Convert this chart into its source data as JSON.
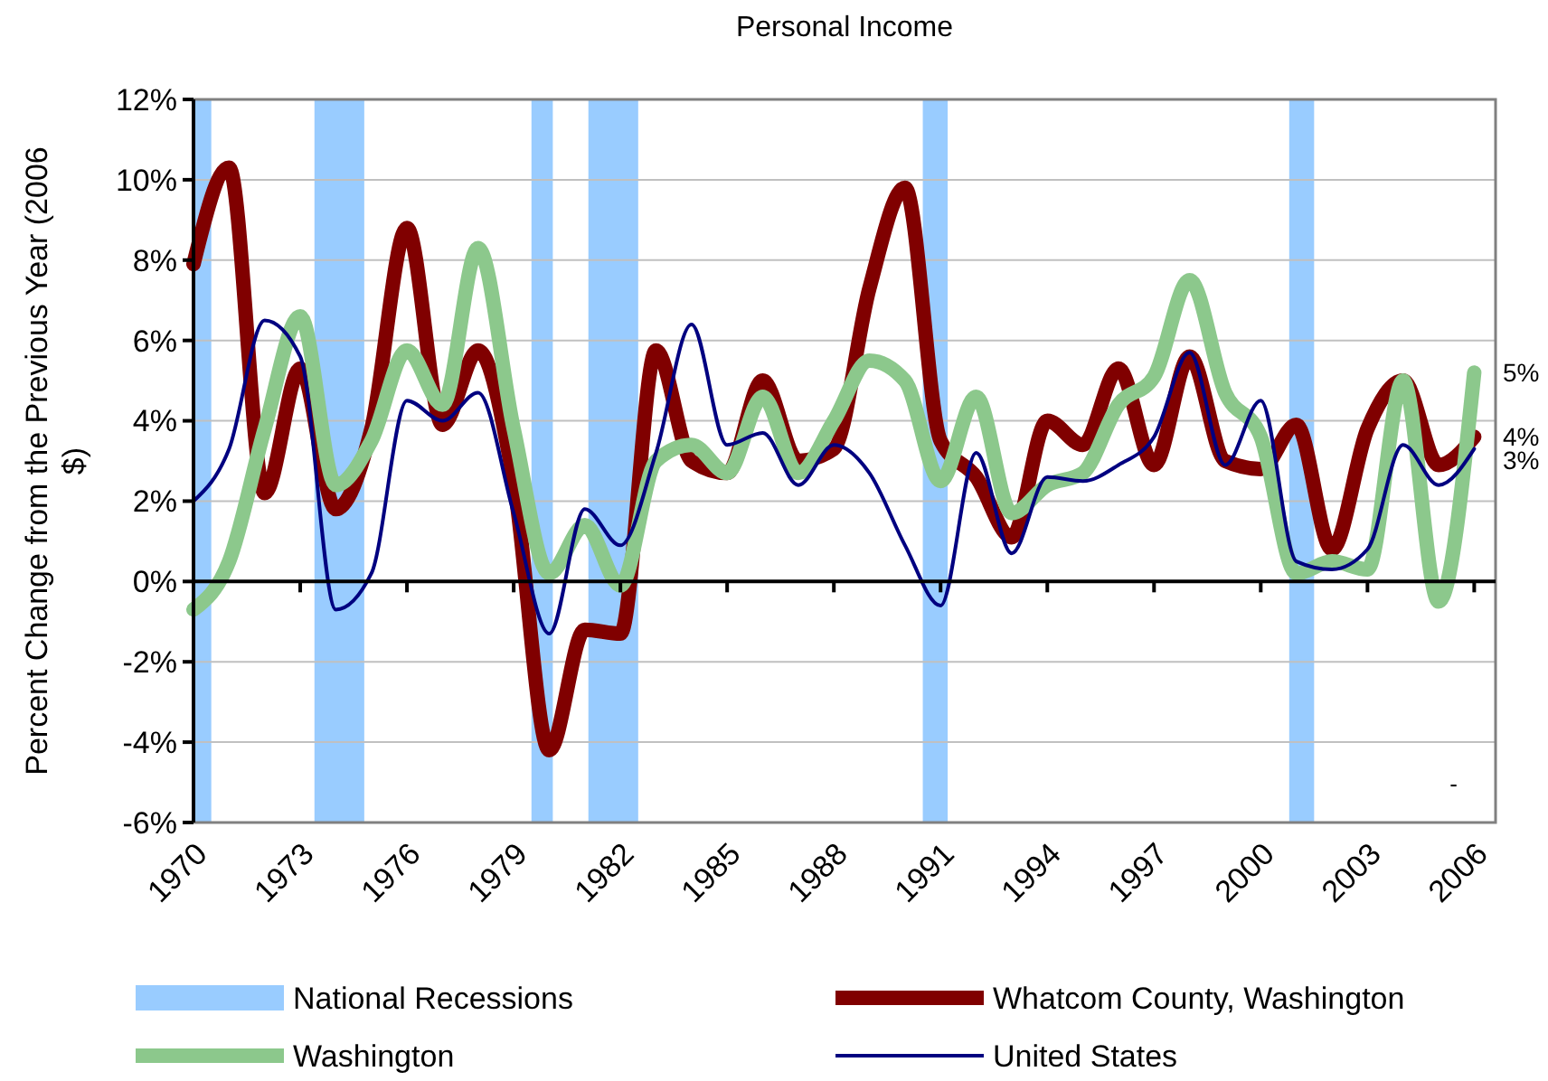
{
  "chart_data": {
    "type": "line",
    "title": "Personal Income",
    "ylabel": "Percent Change from the Previous Year (2006 $)",
    "x": [
      1970,
      1971,
      1972,
      1973,
      1974,
      1975,
      1976,
      1977,
      1978,
      1979,
      1980,
      1981,
      1982,
      1983,
      1984,
      1985,
      1986,
      1987,
      1988,
      1989,
      1990,
      1991,
      1992,
      1993,
      1994,
      1995,
      1996,
      1997,
      1998,
      1999,
      2000,
      2001,
      2002,
      2003,
      2004,
      2005,
      2006
    ],
    "series": [
      {
        "name": "Whatcom County, Washington",
        "color": "#800000",
        "values": [
          7.9,
          10.3,
          2.2,
          5.3,
          1.8,
          3.8,
          8.8,
          3.9,
          5.75,
          2.5,
          -4.2,
          -1.2,
          -1.3,
          5.75,
          3.0,
          2.7,
          5.0,
          3.0,
          3.3,
          7.3,
          9.8,
          3.5,
          2.6,
          1.1,
          4.0,
          3.4,
          5.3,
          2.9,
          5.6,
          3.0,
          2.8,
          3.9,
          0.8,
          3.8,
          5.0,
          2.9,
          3.6
        ],
        "value_labels": [
          null,
          null,
          null,
          null,
          null,
          null,
          null,
          null,
          null,
          null,
          null,
          null,
          null,
          null,
          null,
          null,
          null,
          null,
          null,
          null,
          null,
          null,
          null,
          null,
          null,
          null,
          null,
          null,
          null,
          null,
          null,
          null,
          null,
          null,
          null,
          null,
          "4%"
        ]
      },
      {
        "name": "Washington",
        "color": "#8cc88c",
        "values": [
          -0.7,
          0.5,
          3.8,
          6.6,
          2.4,
          3.5,
          5.75,
          4.4,
          8.3,
          3.8,
          0.2,
          1.4,
          -0.1,
          3.0,
          3.4,
          2.7,
          4.6,
          2.7,
          4.0,
          5.5,
          5.0,
          2.5,
          4.6,
          1.7,
          2.4,
          2.7,
          4.4,
          5.1,
          7.5,
          4.7,
          3.6,
          0.2,
          0.5,
          0.3,
          5.0,
          -0.5,
          5.2
        ],
        "value_labels": [
          null,
          null,
          null,
          null,
          null,
          null,
          null,
          null,
          null,
          null,
          null,
          null,
          null,
          null,
          null,
          null,
          null,
          null,
          null,
          null,
          null,
          null,
          null,
          null,
          null,
          null,
          null,
          null,
          null,
          null,
          null,
          null,
          null,
          null,
          null,
          null,
          "5%"
        ]
      },
      {
        "name": "United States",
        "color": "#000080",
        "values": [
          2.0,
          3.3,
          6.5,
          5.6,
          -0.7,
          0.2,
          4.5,
          4.0,
          4.7,
          1.7,
          -1.3,
          1.8,
          0.9,
          3.2,
          6.4,
          3.4,
          3.7,
          2.4,
          3.4,
          2.7,
          0.9,
          -0.6,
          3.2,
          0.7,
          2.6,
          2.5,
          2.9,
          3.6,
          5.7,
          2.9,
          4.5,
          0.5,
          0.3,
          0.8,
          3.4,
          2.4,
          3.3
        ],
        "value_labels": [
          null,
          null,
          null,
          null,
          null,
          null,
          null,
          null,
          null,
          null,
          null,
          null,
          null,
          null,
          null,
          null,
          null,
          null,
          null,
          null,
          null,
          null,
          null,
          null,
          null,
          null,
          null,
          null,
          null,
          null,
          null,
          null,
          null,
          null,
          null,
          null,
          "3%"
        ]
      }
    ],
    "bands": [
      {
        "axis": "x",
        "from": 1970,
        "to": 1970.5,
        "label": "National Recessions",
        "color": "#99ccff"
      },
      {
        "axis": "x",
        "from": 1973.4,
        "to": 1974.8,
        "color": "#99ccff"
      },
      {
        "axis": "x",
        "from": 1979.5,
        "to": 1980.1,
        "color": "#99ccff"
      },
      {
        "axis": "x",
        "from": 1981.1,
        "to": 1982.5,
        "color": "#99ccff"
      },
      {
        "axis": "x",
        "from": 1990.5,
        "to": 1991.2,
        "color": "#99ccff"
      },
      {
        "axis": "x",
        "from": 2000.8,
        "to": 2001.5,
        "color": "#99ccff"
      }
    ],
    "annotations": [
      "-"
    ],
    "xlim": [
      1970,
      2006.6
    ],
    "xticks": [
      1970,
      1973,
      1976,
      1979,
      1982,
      1985,
      1988,
      1991,
      1994,
      1997,
      2000,
      2003,
      2006
    ],
    "ylim": [
      -6,
      12
    ],
    "yticks": [
      {
        "value": -6,
        "label": "-6%"
      },
      {
        "value": -4,
        "label": "-4%"
      },
      {
        "value": -2,
        "label": "-2%"
      },
      {
        "value": 0,
        "label": "0%"
      },
      {
        "value": 2,
        "label": "2%"
      },
      {
        "value": 4,
        "label": "4%"
      },
      {
        "value": 6,
        "label": "6%"
      },
      {
        "value": 8,
        "label": "8%"
      },
      {
        "value": 10,
        "label": "10%"
      },
      {
        "value": 12,
        "label": "12%"
      }
    ],
    "grid": "y",
    "legend": "bottom",
    "marker": "none",
    "line_style": "solid"
  }
}
